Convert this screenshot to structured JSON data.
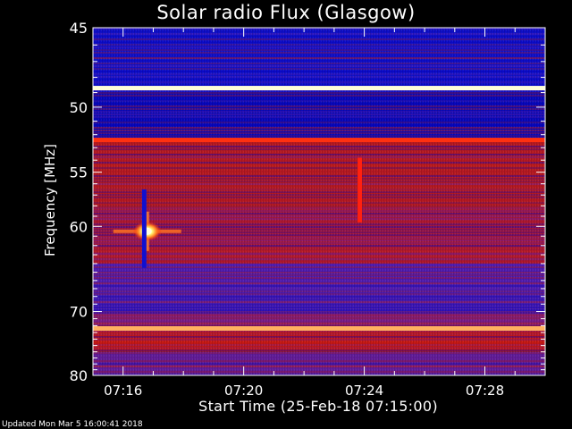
{
  "chart_data": {
    "type": "heatmap",
    "title": "Solar radio Flux (Glasgow)",
    "xlabel": "Start Time (25-Feb-18 07:15:00)",
    "ylabel": "Frequency [MHz]",
    "x_ticks": [
      "07:16",
      "07:20",
      "07:24",
      "07:28"
    ],
    "x_tick_minutes": [
      1,
      5,
      9,
      13
    ],
    "x_range_minutes": [
      0,
      15
    ],
    "y_ticks": [
      45,
      50,
      55,
      60,
      70,
      80
    ],
    "y_range_mhz": [
      45,
      80
    ],
    "y_scale": "reciprocal",
    "colormap": [
      "#1a0050",
      "#0000c8",
      "#6a20b0",
      "#c01818",
      "#e02000",
      "#ffa040",
      "#ffffd8"
    ],
    "background_bands": [
      {
        "from_mhz": 45,
        "to_mhz": 49,
        "color": "#1212c8"
      },
      {
        "from_mhz": 49,
        "to_mhz": 52.4,
        "color": "#0a0ab8"
      },
      {
        "from_mhz": 52.4,
        "to_mhz": 58,
        "color": "#b21a24"
      },
      {
        "from_mhz": 58,
        "to_mhz": 64,
        "color": "#a5183a"
      },
      {
        "from_mhz": 64,
        "to_mhz": 70,
        "color": "#4a1cb0"
      },
      {
        "from_mhz": 70,
        "to_mhz": 72,
        "color": "#7d1e7c"
      },
      {
        "from_mhz": 72,
        "to_mhz": 76,
        "color": "#c01818"
      },
      {
        "from_mhz": 76,
        "to_mhz": 80,
        "color": "#611c94"
      }
    ],
    "interference_lines_mhz": [
      {
        "mhz": 48.7,
        "color": "#ffffd8"
      },
      {
        "mhz": 52.4,
        "color": "#ff3010"
      },
      {
        "mhz": 72.4,
        "color": "#ffb060"
      }
    ],
    "features": [
      {
        "label": "burst",
        "minute": 1.8,
        "mhz": 60.5,
        "color": "#ffffe0"
      },
      {
        "label": "dropout",
        "minute": 1.7,
        "from_mhz": 56.5,
        "to_mhz": 64.5,
        "color": "#1010d0"
      },
      {
        "label": "spike",
        "minute": 8.85,
        "from_mhz": 53.8,
        "to_mhz": 59.6,
        "color": "#ff2010"
      }
    ]
  },
  "footer": "Updated Mon Mar  5 16:00:41 2018"
}
